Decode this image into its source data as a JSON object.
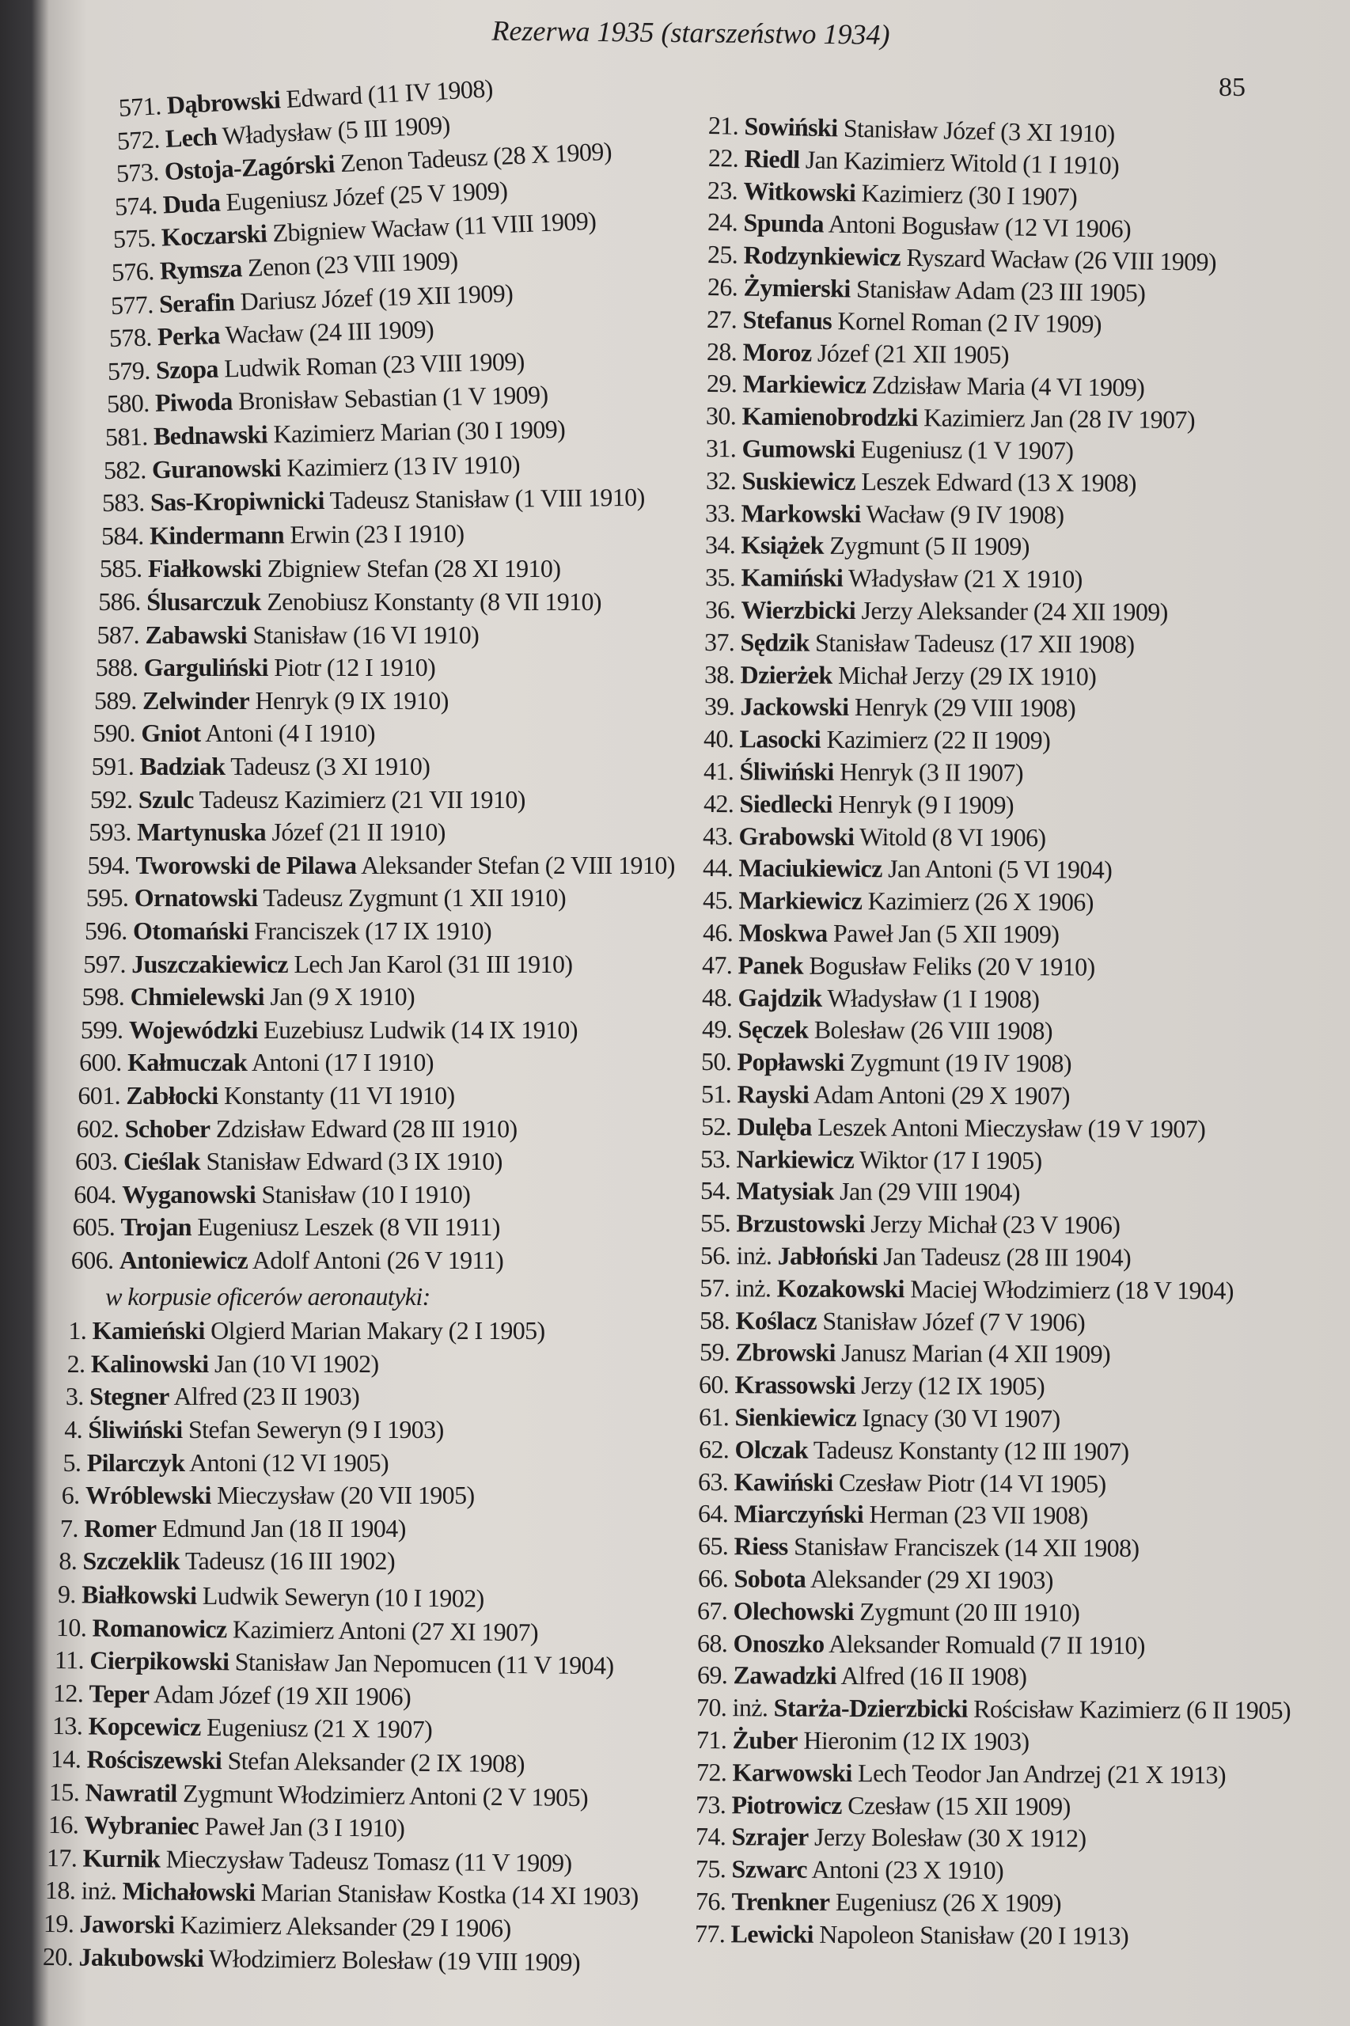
{
  "header": {
    "title": "Rezerwa 1935 (starszeństwo 1934)",
    "page_number": "85"
  },
  "left_column": {
    "entries_a": [
      [
        "571.",
        "",
        "Dąbrowski",
        "Edward (11 IV 1908)"
      ],
      [
        "572.",
        "",
        "Lech",
        "Władysław (5 III 1909)"
      ],
      [
        "573.",
        "",
        "Ostoja-Zagórski",
        "Zenon Tadeusz (28 X 1909)"
      ],
      [
        "574.",
        "",
        "Duda",
        "Eugeniusz Józef (25 V 1909)"
      ],
      [
        "575.",
        "",
        "Koczarski",
        "Zbigniew Wacław (11 VIII 1909)"
      ],
      [
        "576.",
        "",
        "Rymsza",
        "Zenon (23 VIII 1909)"
      ],
      [
        "577.",
        "",
        "Serafin",
        "Dariusz Józef (19 XII 1909)"
      ],
      [
        "578.",
        "",
        "Perka",
        "Wacław (24 III 1909)"
      ],
      [
        "579.",
        "",
        "Szopa",
        "Ludwik Roman (23 VIII 1909)"
      ],
      [
        "580.",
        "",
        "Piwoda",
        "Bronisław Sebastian (1 V 1909)"
      ],
      [
        "581.",
        "",
        "Bednawski",
        "Kazimierz Marian (30 I 1909)"
      ],
      [
        "582.",
        "",
        "Guranowski",
        "Kazimierz (13 IV 1910)"
      ],
      [
        "583.",
        "",
        "Sas-Kropiwnicki",
        "Tadeusz Stanisław (1 VIII 1910)"
      ],
      [
        "584.",
        "",
        "Kindermann",
        "Erwin (23 I 1910)"
      ],
      [
        "585.",
        "",
        "Fiałkowski",
        "Zbigniew Stefan (28 XI 1910)"
      ],
      [
        "586.",
        "",
        "Ślusarczuk",
        "Zenobiusz Konstanty (8 VII 1910)"
      ],
      [
        "587.",
        "",
        "Zabawski",
        "Stanisław (16 VI 1910)"
      ],
      [
        "588.",
        "",
        "Garguliński",
        "Piotr (12 I 1910)"
      ],
      [
        "589.",
        "",
        "Zelwinder",
        "Henryk (9 IX 1910)"
      ],
      [
        "590.",
        "",
        "Gniot",
        "Antoni (4 I 1910)"
      ],
      [
        "591.",
        "",
        "Badziak",
        "Tadeusz (3 XI 1910)"
      ],
      [
        "592.",
        "",
        "Szulc",
        "Tadeusz Kazimierz (21 VII 1910)"
      ],
      [
        "593.",
        "",
        "Martynuska",
        "Józef (21 II 1910)"
      ],
      [
        "594.",
        "",
        "Tworowski de Pilawa",
        "Aleksander Stefan (2 VIII 1910)"
      ],
      [
        "595.",
        "",
        "Ornatowski",
        "Tadeusz Zygmunt (1 XII 1910)"
      ],
      [
        "596.",
        "",
        "Otomański",
        "Franciszek (17 IX 1910)"
      ],
      [
        "597.",
        "",
        "Juszczakiewicz",
        "Lech Jan Karol (31 III 1910)"
      ],
      [
        "598.",
        "",
        "Chmielewski",
        "Jan (9 X 1910)"
      ],
      [
        "599.",
        "",
        "Wojewódzki",
        "Euzebiusz Ludwik (14 IX 1910)"
      ],
      [
        "600.",
        "",
        "Kałmuczak",
        "Antoni (17 I 1910)"
      ],
      [
        "601.",
        "",
        "Zabłocki",
        "Konstanty (11 VI 1910)"
      ],
      [
        "602.",
        "",
        "Schober",
        "Zdzisław Edward (28 III 1910)"
      ],
      [
        "603.",
        "",
        "Cieślak",
        "Stanisław Edward (3 IX 1910)"
      ],
      [
        "604.",
        "",
        "Wyganowski",
        "Stanisław (10 I 1910)"
      ],
      [
        "605.",
        "",
        "Trojan",
        "Eugeniusz Leszek (8 VII 1911)"
      ],
      [
        "606.",
        "",
        "Antoniewicz",
        "Adolf Antoni (26 V 1911)"
      ]
    ],
    "section_heading": "w korpusie oficerów aeronautyki:",
    "entries_b": [
      [
        "1.",
        "",
        "Kamieński",
        "Olgierd Marian Makary (2 I 1905)"
      ],
      [
        "2.",
        "",
        "Kalinowski",
        "Jan (10 VI 1902)"
      ],
      [
        "3.",
        "",
        "Stegner",
        "Alfred (23 II 1903)"
      ],
      [
        "4.",
        "",
        "Śliwiński",
        "Stefan Seweryn (9 I 1903)"
      ],
      [
        "5.",
        "",
        "Pilarczyk",
        "Antoni (12 VI 1905)"
      ],
      [
        "6.",
        "",
        "Wróblewski",
        "Mieczysław (20 VII 1905)"
      ],
      [
        "7.",
        "",
        "Romer",
        "Edmund Jan (18 II 1904)"
      ],
      [
        "8.",
        "",
        "Szczeklik",
        "Tadeusz (16 III 1902)"
      ],
      [
        "9.",
        "",
        "Białkowski",
        "Ludwik Seweryn (10 I 1902)"
      ],
      [
        "10.",
        "",
        "Romanowicz",
        "Kazimierz Antoni (27 XI 1907)"
      ],
      [
        "11.",
        "",
        "Cierpikowski",
        "Stanisław Jan Nepomucen (11 V 1904)"
      ],
      [
        "12.",
        "",
        "Teper",
        "Adam Józef (19 XII 1906)"
      ],
      [
        "13.",
        "",
        "Kopcewicz",
        "Eugeniusz (21 X 1907)"
      ],
      [
        "14.",
        "",
        "Rościszewski",
        "Stefan Aleksander (2 IX 1908)"
      ],
      [
        "15.",
        "",
        "Nawratil",
        "Zygmunt Włodzimierz Antoni (2 V 1905)"
      ],
      [
        "16.",
        "",
        "Wybraniec",
        "Paweł Jan (3 I 1910)"
      ],
      [
        "17.",
        "",
        "Kurnik",
        "Mieczysław Tadeusz Tomasz (11 V 1909)"
      ],
      [
        "18.",
        "inż.",
        "Michałowski",
        "Marian Stanisław Kostka (14 XI 1903)"
      ],
      [
        "19.",
        "",
        "Jaworski",
        "Kazimierz Aleksander (29 I 1906)"
      ],
      [
        "20.",
        "",
        "Jakubowski",
        "Włodzimierz Bolesław (19 VIII 1909)"
      ]
    ]
  },
  "right_column": {
    "entries": [
      [
        "21.",
        "",
        "Sowiński",
        "Stanisław Józef (3 XI 1910)"
      ],
      [
        "22.",
        "",
        "Riedl",
        "Jan Kazimierz Witold (1 I 1910)"
      ],
      [
        "23.",
        "",
        "Witkowski",
        "Kazimierz (30 I 1907)"
      ],
      [
        "24.",
        "",
        "Spunda",
        "Antoni Bogusław (12 VI 1906)"
      ],
      [
        "25.",
        "",
        "Rodzynkiewicz",
        "Ryszard Wacław (26 VIII 1909)"
      ],
      [
        "26.",
        "",
        "Żymierski",
        "Stanisław Adam (23 III 1905)"
      ],
      [
        "27.",
        "",
        "Stefanus",
        "Kornel Roman (2 IV 1909)"
      ],
      [
        "28.",
        "",
        "Moroz",
        "Józef (21 XII 1905)"
      ],
      [
        "29.",
        "",
        "Markiewicz",
        "Zdzisław Maria (4 VI 1909)"
      ],
      [
        "30.",
        "",
        "Kamienobrodzki",
        "Kazimierz Jan (28 IV 1907)"
      ],
      [
        "31.",
        "",
        "Gumowski",
        "Eugeniusz (1 V 1907)"
      ],
      [
        "32.",
        "",
        "Suskiewicz",
        "Leszek Edward (13 X 1908)"
      ],
      [
        "33.",
        "",
        "Markowski",
        "Wacław (9 IV 1908)"
      ],
      [
        "34.",
        "",
        "Książek",
        "Zygmunt (5 II 1909)"
      ],
      [
        "35.",
        "",
        "Kamiński",
        "Władysław (21 X 1910)"
      ],
      [
        "36.",
        "",
        "Wierzbicki",
        "Jerzy Aleksander (24 XII 1909)"
      ],
      [
        "37.",
        "",
        "Sędzik",
        "Stanisław Tadeusz (17 XII 1908)"
      ],
      [
        "38.",
        "",
        "Dzierżek",
        "Michał Jerzy (29 IX 1910)"
      ],
      [
        "39.",
        "",
        "Jackowski",
        "Henryk (29 VIII 1908)"
      ],
      [
        "40.",
        "",
        "Lasocki",
        "Kazimierz (22 II 1909)"
      ],
      [
        "41.",
        "",
        "Śliwiński",
        "Henryk (3 II 1907)"
      ],
      [
        "42.",
        "",
        "Siedlecki",
        "Henryk (9 I 1909)"
      ],
      [
        "43.",
        "",
        "Grabowski",
        "Witold (8 VI 1906)"
      ],
      [
        "44.",
        "",
        "Maciukiewicz",
        "Jan Antoni (5 VI 1904)"
      ],
      [
        "45.",
        "",
        "Markiewicz",
        "Kazimierz (26 X 1906)"
      ],
      [
        "46.",
        "",
        "Moskwa",
        "Paweł Jan (5 XII 1909)"
      ],
      [
        "47.",
        "",
        "Panek",
        "Bogusław Feliks (20 V 1910)"
      ],
      [
        "48.",
        "",
        "Gajdzik",
        "Władysław (1 I 1908)"
      ],
      [
        "49.",
        "",
        "Sęczek",
        "Bolesław (26 VIII 1908)"
      ],
      [
        "50.",
        "",
        "Popławski",
        "Zygmunt (19 IV 1908)"
      ],
      [
        "51.",
        "",
        "Rayski",
        "Adam Antoni (29 X 1907)"
      ],
      [
        "52.",
        "",
        "Dulęba",
        "Leszek Antoni Mieczysław (19 V 1907)"
      ],
      [
        "53.",
        "",
        "Narkiewicz",
        "Wiktor (17 I 1905)"
      ],
      [
        "54.",
        "",
        "Matysiak",
        "Jan (29 VIII 1904)"
      ],
      [
        "55.",
        "",
        "Brzustowski",
        "Jerzy Michał (23 V 1906)"
      ],
      [
        "56.",
        "inż.",
        "Jabłoński",
        "Jan Tadeusz (28 III 1904)"
      ],
      [
        "57.",
        "inż.",
        "Kozakowski",
        "Maciej Włodzimierz (18 V 1904)"
      ],
      [
        "58.",
        "",
        "Koślacz",
        "Stanisław Józef (7 V 1906)"
      ],
      [
        "59.",
        "",
        "Zbrowski",
        "Janusz Marian (4 XII 1909)"
      ],
      [
        "60.",
        "",
        "Krassowski",
        "Jerzy (12 IX 1905)"
      ],
      [
        "61.",
        "",
        "Sienkiewicz",
        "Ignacy (30 VI 1907)"
      ],
      [
        "62.",
        "",
        "Olczak",
        "Tadeusz Konstanty (12 III 1907)"
      ],
      [
        "63.",
        "",
        "Kawiński",
        "Czesław Piotr (14 VI 1905)"
      ],
      [
        "64.",
        "",
        "Miarczyński",
        "Herman (23 VII 1908)"
      ],
      [
        "65.",
        "",
        "Riess",
        "Stanisław Franciszek (14 XII 1908)"
      ],
      [
        "66.",
        "",
        "Sobota",
        "Aleksander (29 XI 1903)"
      ],
      [
        "67.",
        "",
        "Olechowski",
        "Zygmunt (20 III 1910)"
      ],
      [
        "68.",
        "",
        "Onoszko",
        "Aleksander Romuald (7 II 1910)"
      ],
      [
        "69.",
        "",
        "Zawadzki",
        "Alfred (16 II 1908)"
      ],
      [
        "70.",
        "inż.",
        "Starża-Dzierzbicki",
        "Rościsław Kazimierz (6 II 1905)"
      ],
      [
        "71.",
        "",
        "Żuber",
        "Hieronim (12 IX 1903)"
      ],
      [
        "72.",
        "",
        "Karwowski",
        "Lech Teodor Jan Andrzej (21 X 1913)"
      ],
      [
        "73.",
        "",
        "Piotrowicz",
        "Czesław (15 XII 1909)"
      ],
      [
        "74.",
        "",
        "Szrajer",
        "Jerzy Bolesław (30 X 1912)"
      ],
      [
        "75.",
        "",
        "Szwarc",
        "Antoni (23 X 1910)"
      ],
      [
        "76.",
        "",
        "Trenkner",
        "Eugeniusz (26 X 1909)"
      ],
      [
        "77.",
        "",
        "Lewicki",
        "Napoleon Stanisław (20 I 1913)"
      ]
    ]
  }
}
